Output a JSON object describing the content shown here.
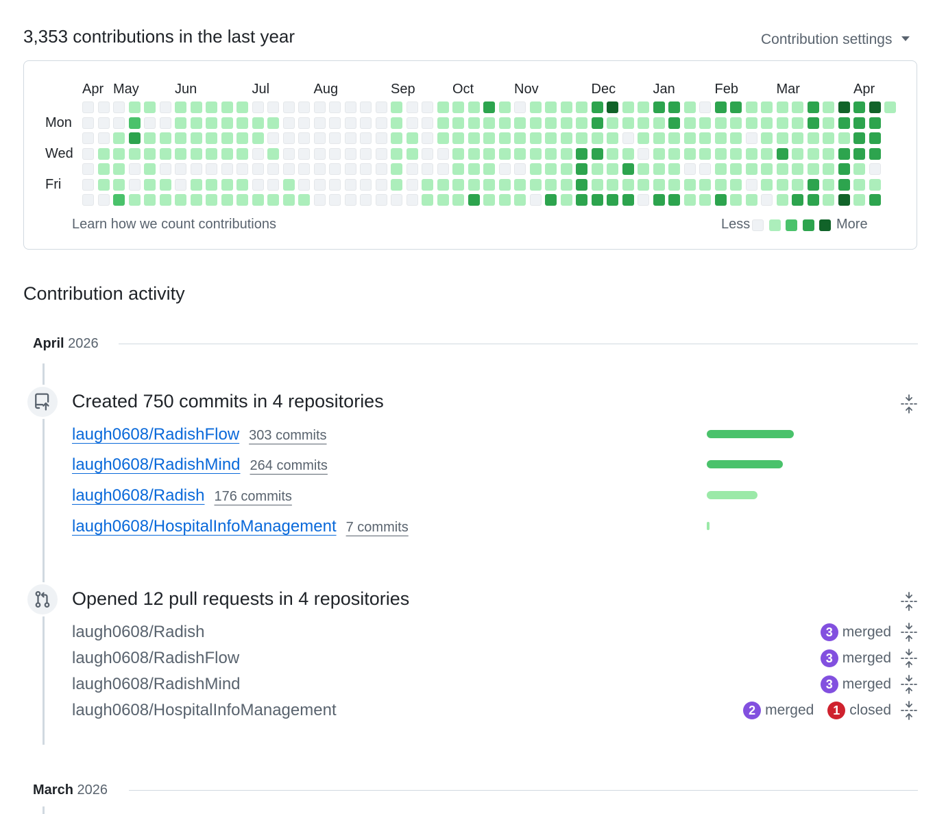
{
  "header": {
    "title": "3,353 contributions in the last year",
    "settings_label": "Contribution settings"
  },
  "calendar": {
    "months": [
      "Apr",
      "May",
      "Jun",
      "Jul",
      "Aug",
      "Sep",
      "Oct",
      "Nov",
      "Dec",
      "Jan",
      "Feb",
      "Mar",
      "Apr"
    ],
    "month_start_weeks": [
      0,
      2,
      6,
      11,
      15,
      20,
      24,
      28,
      33,
      37,
      41,
      45,
      50
    ],
    "day_labels": [
      "Mon",
      "Wed",
      "Fri"
    ],
    "day_label_rows": [
      1,
      3,
      5
    ],
    "levels": [
      "0000000",
      "0001110",
      "0011112",
      "1231001",
      "1011111",
      "0011011",
      "1111001",
      "1111011",
      "1111011",
      "1111011",
      "1111011",
      "0110001",
      "0101001",
      "0000011",
      "0000001",
      "0000000",
      "0000000",
      "0000000",
      "0000000",
      "0000000",
      "1111110",
      "0011000",
      "0000011",
      "1110011",
      "1111111",
      "1111113",
      "3111111",
      "1111011",
      "0111011",
      "1111110",
      "1111113",
      "1111111",
      "1113333",
      "3313113",
      "4111113",
      "1101313",
      "1110110",
      "3111113",
      "3311113",
      "1111011",
      "0111011",
      "3111113",
      "3111111",
      "1101101",
      "1111110",
      "1113111",
      "1111113",
      "3311133",
      "1111111",
      "4313334",
      "3333111",
      "4333013"
    ],
    "current_week_days": 1,
    "learn_link": "Learn how we count contributions",
    "legend_less": "Less",
    "legend_more": "More",
    "legend_colors": [
      "#eff2f5",
      "#aceebb",
      "#4ac26b",
      "#2da44e",
      "#116329"
    ]
  },
  "activity": {
    "heading": "Contribution activity",
    "months": [
      {
        "month": "April",
        "year": "2026"
      },
      {
        "month": "March",
        "year": "2026"
      }
    ],
    "commits": {
      "title": "Created 750 commits in 4 repositories",
      "repos": [
        {
          "name": "laugh0608/RadishFlow",
          "count": "303 commits",
          "commits": 303,
          "color": "#2da44e"
        },
        {
          "name": "laugh0608/RadishMind",
          "count": "264 commits",
          "commits": 264,
          "color": "#2da44e"
        },
        {
          "name": "laugh0608/Radish",
          "count": "176 commits",
          "commits": 176,
          "color": "#aceebb"
        },
        {
          "name": "laugh0608/HospitalInfoManagement",
          "count": "7 commits",
          "commits": 7,
          "color": "#aceebb"
        }
      ]
    },
    "pull_requests": {
      "title": "Opened 12 pull requests in 4 repositories",
      "repos": [
        {
          "name": "laugh0608/Radish",
          "merged": "3",
          "merged_label": "merged",
          "closed": "",
          "closed_label": ""
        },
        {
          "name": "laugh0608/RadishFlow",
          "merged": "3",
          "merged_label": "merged",
          "closed": "",
          "closed_label": ""
        },
        {
          "name": "laugh0608/RadishMind",
          "merged": "3",
          "merged_label": "merged",
          "closed": "",
          "closed_label": ""
        },
        {
          "name": "laugh0608/HospitalInfoManagement",
          "merged": "2",
          "merged_label": "merged",
          "closed": "1",
          "closed_label": "closed"
        }
      ]
    }
  }
}
